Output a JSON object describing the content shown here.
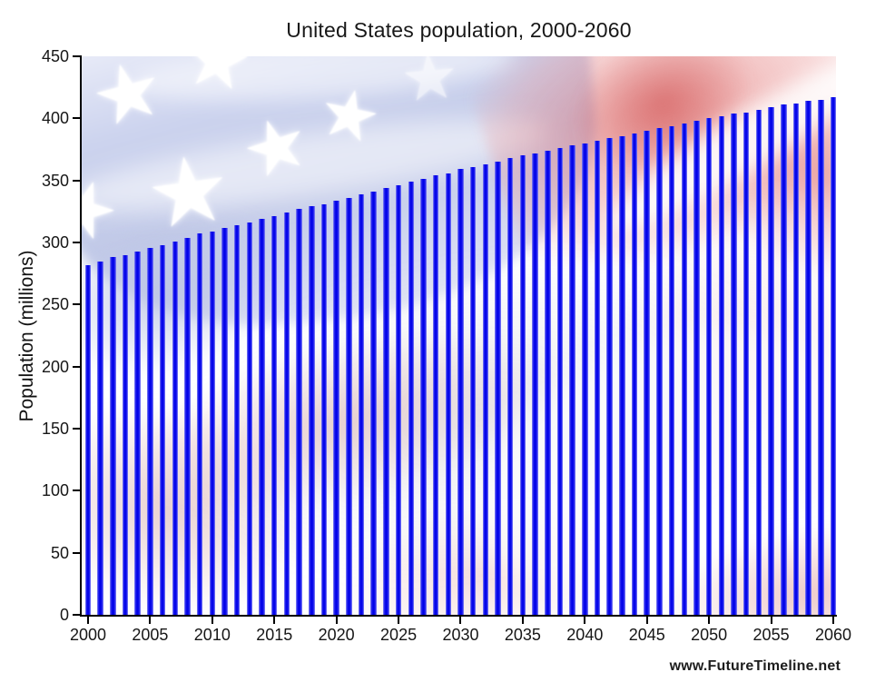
{
  "page": {
    "watermark": "www.FutureTimeline.net"
  },
  "chart_data": {
    "type": "bar",
    "title": "United States population, 2000-2060",
    "xlabel": "",
    "ylabel": "Population (millions)",
    "ylim": [
      0,
      450
    ],
    "grid": false,
    "legend": false,
    "background": "faded-us-flag",
    "bar_color": "#0000ee",
    "axis_color": "#000000",
    "y_ticks": [
      0,
      50,
      100,
      150,
      200,
      250,
      300,
      350,
      400,
      450
    ],
    "x_tick_labels": [
      "2000",
      "2005",
      "2010",
      "2015",
      "2020",
      "2025",
      "2030",
      "2035",
      "2040",
      "2045",
      "2050",
      "2055",
      "2060"
    ],
    "x": [
      2000,
      2001,
      2002,
      2003,
      2004,
      2005,
      2006,
      2007,
      2008,
      2009,
      2010,
      2011,
      2012,
      2013,
      2014,
      2015,
      2016,
      2017,
      2018,
      2019,
      2020,
      2021,
      2022,
      2023,
      2024,
      2025,
      2026,
      2027,
      2028,
      2029,
      2030,
      2031,
      2032,
      2033,
      2034,
      2035,
      2036,
      2037,
      2038,
      2039,
      2040,
      2041,
      2042,
      2043,
      2044,
      2045,
      2046,
      2047,
      2048,
      2049,
      2050,
      2051,
      2052,
      2053,
      2054,
      2055,
      2056,
      2057,
      2058,
      2059,
      2060
    ],
    "values": [
      282,
      285,
      288,
      290,
      293,
      296,
      298,
      301,
      304,
      307,
      309,
      312,
      314,
      316,
      319,
      321,
      324,
      327,
      329,
      331,
      334,
      336,
      339,
      341,
      344,
      346,
      349,
      351,
      354,
      356,
      359,
      361,
      363,
      365,
      368,
      370,
      372,
      374,
      376,
      378,
      380,
      382,
      384,
      386,
      388,
      390,
      392,
      394,
      396,
      398,
      400,
      402,
      404,
      405,
      407,
      409,
      411,
      412,
      414,
      415,
      417
    ]
  }
}
